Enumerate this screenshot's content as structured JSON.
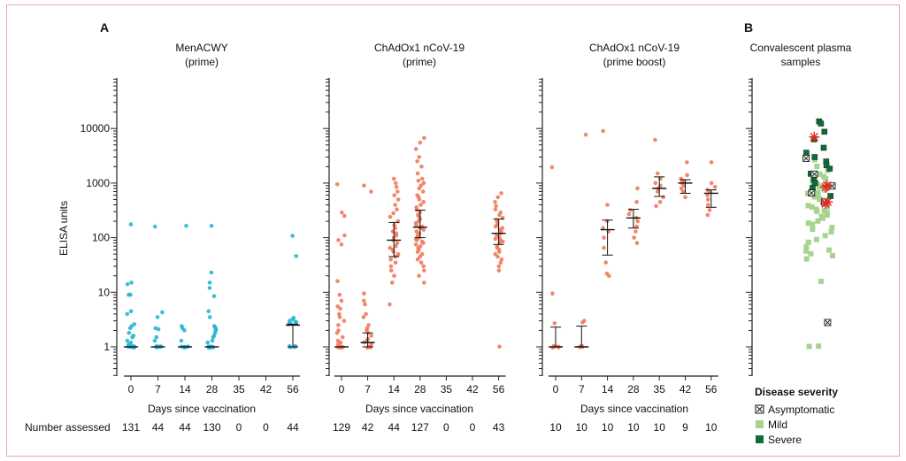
{
  "panel_labels": [
    "A",
    "B"
  ],
  "y_axis_label": "ELISA units",
  "x_axis_label": "Days since vaccination",
  "number_assessed_label": "Number assessed",
  "y_ticks": [
    1,
    10,
    100,
    1000,
    10000
  ],
  "y_tick_labels": [
    "1",
    "10",
    "100",
    "1000",
    "10000"
  ],
  "legend": {
    "title": "Disease severity",
    "items": [
      {
        "label": "Asymptomatic",
        "color": "#ffffff",
        "marker": "boxed-x"
      },
      {
        "label": "Mild",
        "color": "#a6d48f",
        "marker": "square"
      },
      {
        "label": "Severe",
        "color": "#146b3a",
        "marker": "square"
      }
    ]
  },
  "chart_data": [
    {
      "type": "scatter",
      "title": "MenACWY\n(prime)",
      "title_lines": [
        "MenACWY",
        "(prime)"
      ],
      "color": "#2bb4d4",
      "scale": "log",
      "ylim": [
        0.3,
        50000
      ],
      "xlabel": "Days since vaccination",
      "ylabel": "ELISA units",
      "categories": [
        "0",
        "7",
        "14",
        "28",
        "35",
        "42",
        "56"
      ],
      "n_assessed": [
        "131",
        "44",
        "44",
        "130",
        "0",
        "0",
        "44"
      ],
      "groups": [
        {
          "x": "0",
          "median": 1,
          "q1": 1,
          "q3": 1,
          "points": [
            175,
            15,
            14,
            9,
            9,
            4.5,
            4,
            2.6,
            2.4,
            2.2,
            1.8,
            1.6,
            1.5,
            1.3,
            1.2,
            1.1,
            1,
            1,
            1,
            1,
            1,
            1,
            1,
            1
          ]
        },
        {
          "x": "7",
          "median": 1,
          "q1": 1,
          "q3": 1,
          "points": [
            160,
            4.3,
            3.5,
            2.2,
            2.1,
            1.5,
            1.3,
            1,
            1,
            1,
            1,
            1,
            1
          ]
        },
        {
          "x": "14",
          "median": 1,
          "q1": 1,
          "q3": 1,
          "points": [
            165,
            2.4,
            2.2,
            2.0,
            1.3,
            1,
            1,
            1,
            1,
            1
          ]
        },
        {
          "x": "28",
          "median": 1,
          "q1": 1,
          "q3": 1,
          "points": [
            165,
            23,
            15,
            12,
            8.5,
            4.5,
            3.5,
            2.4,
            2.3,
            2.1,
            2.0,
            1.8,
            1.6,
            1.5,
            1.3,
            1.2,
            1,
            1,
            1,
            1,
            1,
            1,
            1
          ]
        },
        {
          "x": "56",
          "median": 2.5,
          "q1": 1,
          "q3": 2.6,
          "points": [
            108,
            46,
            3.4,
            3.2,
            3.0,
            2.9,
            2.8,
            2.7,
            2.6,
            1,
            1,
            1,
            1,
            1
          ]
        }
      ]
    },
    {
      "type": "scatter",
      "title": "ChAdOx1 nCoV-19\n(prime)",
      "title_lines": [
        "ChAdOx1 nCoV-19",
        "(prime)"
      ],
      "color": "#f07b5d",
      "scale": "log",
      "ylim": [
        0.3,
        50000
      ],
      "xlabel": "Days since vaccination",
      "ylabel": "ELISA units",
      "categories": [
        "0",
        "7",
        "14",
        "28",
        "35",
        "42",
        "56"
      ],
      "n_assessed": [
        "129",
        "42",
        "44",
        "127",
        "0",
        "0",
        "43"
      ],
      "groups": [
        {
          "x": "0",
          "median": 1,
          "q1": 1,
          "q3": 1,
          "points": [
            950,
            290,
            250,
            110,
            90,
            75,
            16,
            9,
            7,
            5.5,
            5,
            4,
            3.5,
            3,
            2.5,
            2,
            1.8,
            1.5,
            1.3,
            1.2,
            1.1,
            1,
            1,
            1,
            1,
            1,
            1
          ]
        },
        {
          "x": "7",
          "median": 1.2,
          "q1": 1,
          "q3": 1.8,
          "points": [
            900,
            700,
            9.5,
            7,
            6,
            4,
            3.5,
            2.5,
            2.2,
            2,
            1.8,
            1.6,
            1.4,
            1.3,
            1.2,
            1.1,
            1,
            1,
            1,
            1
          ]
        },
        {
          "x": "14",
          "median": 90,
          "q1": 45,
          "q3": 190,
          "points": [
            1200,
            1000,
            850,
            700,
            600,
            500,
            400,
            330,
            280,
            240,
            200,
            170,
            150,
            130,
            120,
            110,
            100,
            90,
            80,
            70,
            65,
            60,
            55,
            50,
            45,
            40,
            35,
            30,
            25,
            20,
            15,
            6
          ]
        },
        {
          "x": "28",
          "median": 155,
          "q1": 100,
          "q3": 320,
          "points": [
            6700,
            5500,
            4200,
            3000,
            2500,
            2000,
            1500,
            1200,
            1100,
            1000,
            900,
            800,
            700,
            600,
            550,
            500,
            450,
            400,
            360,
            320,
            290,
            260,
            240,
            220,
            200,
            185,
            170,
            160,
            155,
            150,
            140,
            130,
            120,
            110,
            100,
            95,
            90,
            85,
            80,
            75,
            70,
            65,
            60,
            55,
            50,
            45,
            40,
            35,
            30,
            25,
            20,
            15
          ]
        },
        {
          "x": "56",
          "median": 120,
          "q1": 75,
          "q3": 220,
          "points": [
            650,
            550,
            450,
            380,
            330,
            290,
            260,
            230,
            210,
            190,
            170,
            160,
            150,
            140,
            130,
            120,
            110,
            100,
            95,
            90,
            85,
            80,
            70,
            65,
            60,
            55,
            50,
            45,
            40,
            35,
            30,
            25,
            1
          ]
        }
      ]
    },
    {
      "type": "scatter",
      "title": "ChAdOx1 nCoV-19\n(prime boost)",
      "title_lines": [
        "ChAdOx1 nCoV-19",
        "(prime boost)"
      ],
      "color": "#f07b5d",
      "scale": "log",
      "ylim": [
        0.3,
        50000
      ],
      "xlabel": "Days since vaccination",
      "ylabel": "ELISA units",
      "categories": [
        "0",
        "7",
        "14",
        "28",
        "35",
        "42",
        "56"
      ],
      "n_assessed": [
        "10",
        "10",
        "10",
        "10",
        "10",
        "9",
        "10"
      ],
      "groups": [
        {
          "x": "0",
          "median": 1,
          "q1": 1,
          "q3": 2.3,
          "points": [
            1950,
            9.5,
            2.7,
            1,
            1,
            1,
            1,
            1,
            1,
            1
          ]
        },
        {
          "x": "7",
          "median": 1,
          "q1": 1,
          "q3": 2.4,
          "points": [
            7700,
            3.0,
            2.8,
            1,
            1,
            1,
            1,
            1,
            1,
            1
          ]
        },
        {
          "x": "14",
          "median": 140,
          "q1": 48,
          "q3": 210,
          "points": [
            9000,
            400,
            200,
            150,
            130,
            100,
            65,
            35,
            22,
            20
          ]
        },
        {
          "x": "28",
          "median": 230,
          "q1": 150,
          "q3": 330,
          "points": [
            800,
            450,
            320,
            270,
            230,
            200,
            160,
            130,
            100,
            80
          ]
        },
        {
          "x": "35",
          "median": 800,
          "q1": 570,
          "q3": 1300,
          "points": [
            6200,
            1500,
            1200,
            1000,
            900,
            800,
            700,
            550,
            450,
            380
          ]
        },
        {
          "x": "42",
          "median": 1000,
          "q1": 650,
          "q3": 1150,
          "points": [
            2400,
            1400,
            1200,
            1100,
            1000,
            900,
            800,
            700,
            550
          ]
        },
        {
          "x": "56",
          "median": 650,
          "q1": 360,
          "q3": 750,
          "points": [
            2400,
            1000,
            850,
            750,
            700,
            600,
            500,
            400,
            320,
            260
          ]
        }
      ]
    },
    {
      "type": "scatter",
      "title": "Convalescent plasma\nsamples",
      "title_lines": [
        "Convalescent plasma",
        "samples"
      ],
      "scale": "log",
      "ylim": [
        0.3,
        50000
      ],
      "series": [
        {
          "name": "Mild",
          "color": "#a6d48f",
          "values": [
            2600,
            2000,
            1700,
            1500,
            1300,
            1200,
            1100,
            1000,
            950,
            900,
            850,
            800,
            760,
            720,
            680,
            640,
            600,
            570,
            540,
            510,
            480,
            450,
            420,
            400,
            380,
            360,
            340,
            320,
            300,
            280,
            260,
            240,
            220,
            200,
            185,
            170,
            155,
            140,
            125,
            110,
            95,
            80,
            70,
            60,
            55,
            50,
            45,
            40,
            16,
            1,
            1
          ]
        },
        {
          "name": "Severe",
          "color": "#146b3a",
          "values": [
            13000,
            12500,
            9000,
            6500,
            4500,
            3500,
            3000,
            2500,
            2200,
            1800,
            1500,
            1200,
            1000,
            800,
            600
          ]
        },
        {
          "name": "Asymptomatic",
          "color": "#ffffff",
          "values": [
            2800,
            1500,
            900,
            650,
            450,
            2.8
          ]
        }
      ],
      "highlighted": [
        7000,
        900,
        850,
        450,
        420
      ]
    }
  ]
}
